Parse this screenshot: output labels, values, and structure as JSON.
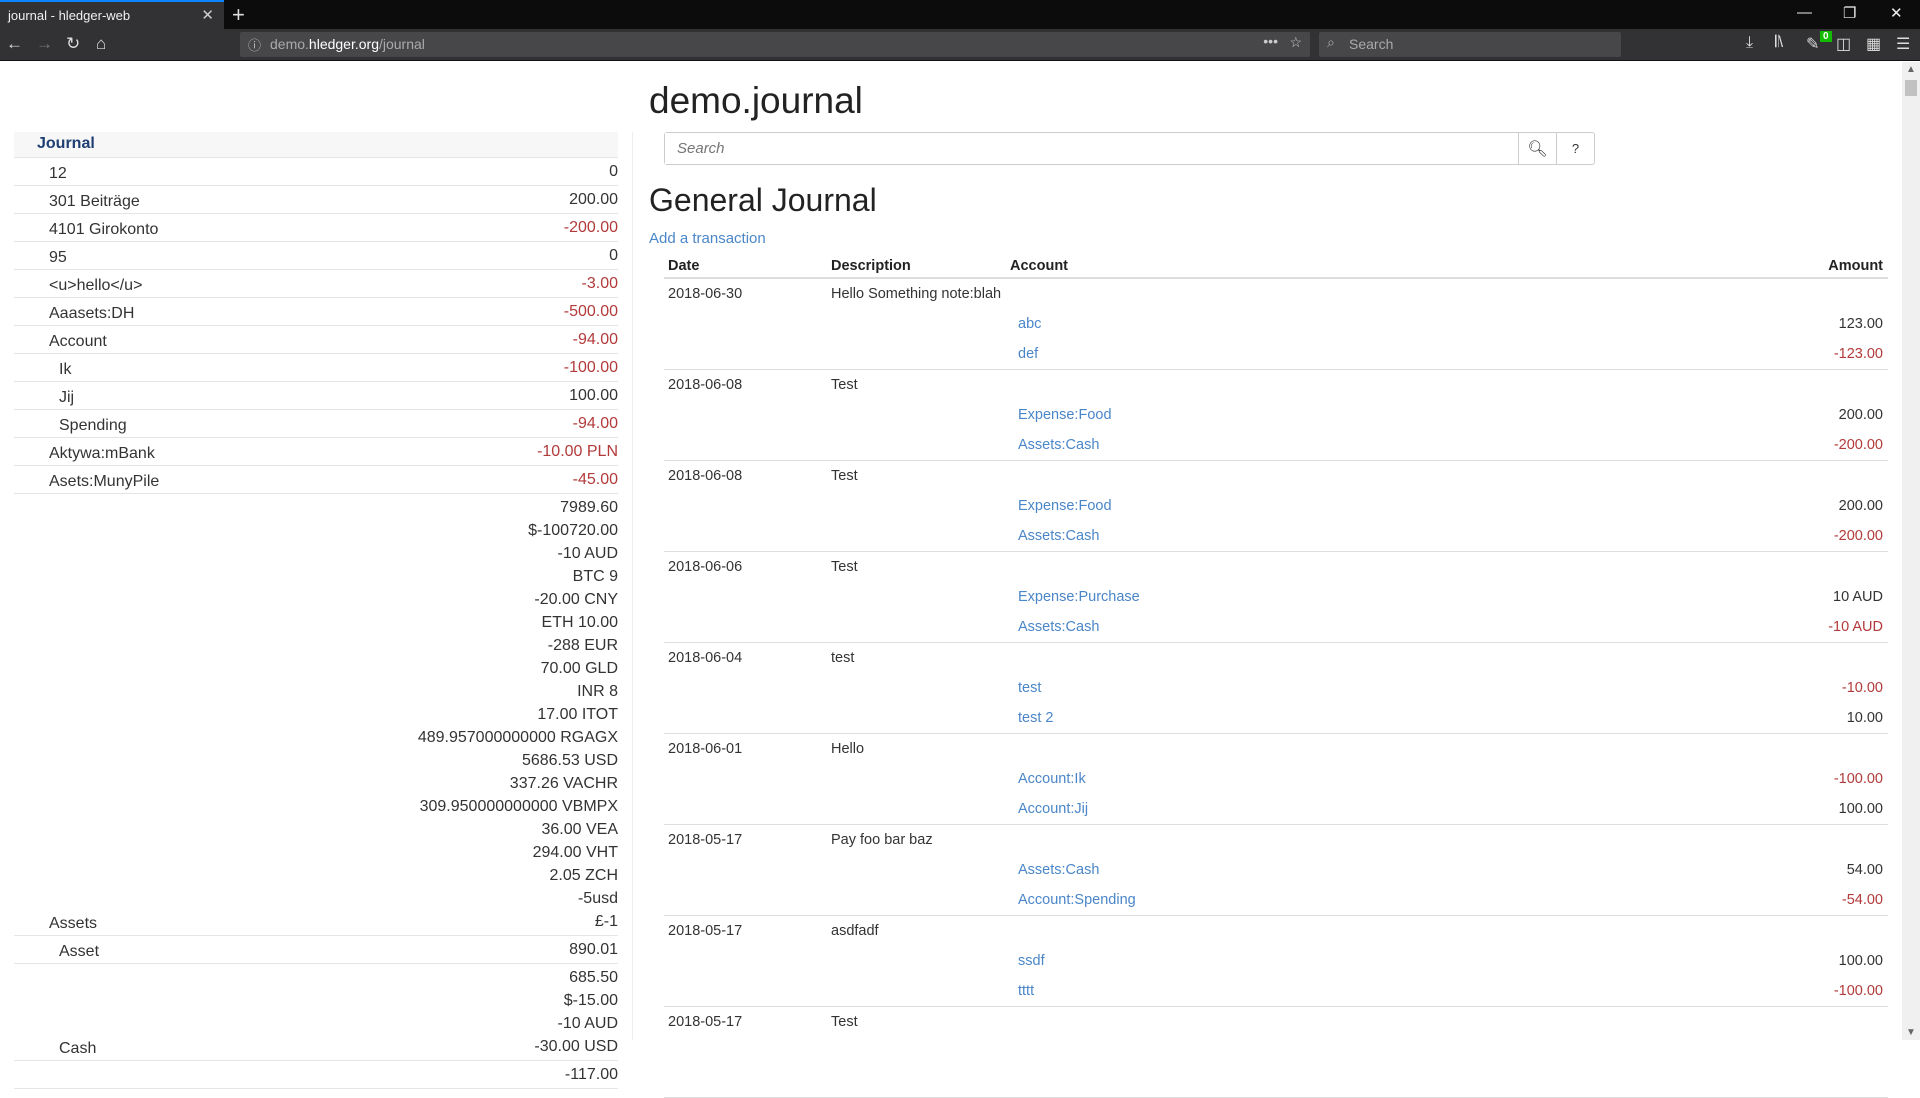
{
  "browser": {
    "tab_title": "journal - hledger-web",
    "url_prefix": "demo.",
    "url_domain": "hledger.org",
    "url_path": "/journal",
    "search_placeholder": "Search",
    "badge": "0"
  },
  "sidebar": {
    "heading": "Journal",
    "rows": [
      {
        "name": "12",
        "level": 1,
        "amounts": [
          {
            "v": "0",
            "neg": false
          }
        ]
      },
      {
        "name": "301 Beiträge",
        "level": 1,
        "amounts": [
          {
            "v": "200.00",
            "neg": false
          }
        ]
      },
      {
        "name": "4101 Girokonto",
        "level": 1,
        "amounts": [
          {
            "v": "-200.00",
            "neg": true
          }
        ]
      },
      {
        "name": "95",
        "level": 1,
        "amounts": [
          {
            "v": "0",
            "neg": false
          }
        ]
      },
      {
        "name": "<u>hello</u>",
        "level": 1,
        "amounts": [
          {
            "v": "-3.00",
            "neg": true
          }
        ]
      },
      {
        "name": "Aaasets:DH",
        "level": 1,
        "amounts": [
          {
            "v": "-500.00",
            "neg": true
          }
        ]
      },
      {
        "name": "Account",
        "level": 1,
        "amounts": [
          {
            "v": "-94.00",
            "neg": true
          }
        ]
      },
      {
        "name": "Ik",
        "level": 2,
        "amounts": [
          {
            "v": "-100.00",
            "neg": true
          }
        ]
      },
      {
        "name": "Jij",
        "level": 2,
        "amounts": [
          {
            "v": "100.00",
            "neg": false
          }
        ]
      },
      {
        "name": "Spending",
        "level": 2,
        "amounts": [
          {
            "v": "-94.00",
            "neg": true
          }
        ]
      },
      {
        "name": "Aktywa:mBank",
        "level": 1,
        "amounts": [
          {
            "v": "-10.00 PLN",
            "neg": true
          }
        ]
      },
      {
        "name": "Asets:MunyPile",
        "level": 1,
        "amounts": [
          {
            "v": "-45.00",
            "neg": true
          }
        ]
      },
      {
        "name": "Assets",
        "level": 1,
        "amounts": [
          {
            "v": "7989.60",
            "neg": false
          },
          {
            "v": "$-100720.00",
            "neg": false
          },
          {
            "v": "-10 AUD",
            "neg": false
          },
          {
            "v": "BTC 9",
            "neg": false
          },
          {
            "v": "-20.00 CNY",
            "neg": false
          },
          {
            "v": "ETH 10.00",
            "neg": false
          },
          {
            "v": "-288 EUR",
            "neg": false
          },
          {
            "v": "70.00 GLD",
            "neg": false
          },
          {
            "v": "INR 8",
            "neg": false
          },
          {
            "v": "17.00 ITOT",
            "neg": false
          },
          {
            "v": "489.957000000000 RGAGX",
            "neg": false
          },
          {
            "v": "5686.53 USD",
            "neg": false
          },
          {
            "v": "337.26 VACHR",
            "neg": false
          },
          {
            "v": "309.950000000000 VBMPX",
            "neg": false
          },
          {
            "v": "36.00 VEA",
            "neg": false
          },
          {
            "v": "294.00 VHT",
            "neg": false
          },
          {
            "v": "2.05 ZCH",
            "neg": false
          },
          {
            "v": "-5usd",
            "neg": false
          },
          {
            "v": "£-1",
            "neg": false
          }
        ]
      },
      {
        "name": "Asset",
        "level": 2,
        "amounts": [
          {
            "v": "890.01",
            "neg": false
          }
        ]
      },
      {
        "name": "Cash",
        "level": 2,
        "amounts": [
          {
            "v": "685.50",
            "neg": false
          },
          {
            "v": "$-15.00",
            "neg": false
          },
          {
            "v": "-10 AUD",
            "neg": false
          },
          {
            "v": "-30.00 USD",
            "neg": false
          }
        ]
      },
      {
        "name": "",
        "level": 2,
        "amounts": [
          {
            "v": "-117.00",
            "neg": false
          }
        ]
      }
    ]
  },
  "main": {
    "title": "demo.journal",
    "search_placeholder": "Search",
    "help_label": "?",
    "heading": "General Journal",
    "add_link": "Add a transaction",
    "columns": {
      "date": "Date",
      "description": "Description",
      "account": "Account",
      "amount": "Amount"
    },
    "transactions": [
      {
        "date": "2018-06-30",
        "desc": "Hello Something note:blah",
        "postings": [
          {
            "account": "abc",
            "amount": "123.00",
            "neg": false
          },
          {
            "account": "def",
            "amount": "-123.00",
            "neg": true
          }
        ]
      },
      {
        "date": "2018-06-08",
        "desc": "Test",
        "postings": [
          {
            "account": "Expense:Food",
            "amount": "200.00",
            "neg": false
          },
          {
            "account": "Assets:Cash",
            "amount": "-200.00",
            "neg": true
          }
        ]
      },
      {
        "date": "2018-06-08",
        "desc": "Test",
        "postings": [
          {
            "account": "Expense:Food",
            "amount": "200.00",
            "neg": false
          },
          {
            "account": "Assets:Cash",
            "amount": "-200.00",
            "neg": true
          }
        ]
      },
      {
        "date": "2018-06-06",
        "desc": "Test",
        "postings": [
          {
            "account": "Expense:Purchase",
            "amount": "10 AUD",
            "neg": false
          },
          {
            "account": "Assets:Cash",
            "amount": "-10 AUD",
            "neg": true
          }
        ]
      },
      {
        "date": "2018-06-04",
        "desc": "test",
        "postings": [
          {
            "account": "test",
            "amount": "-10.00",
            "neg": true
          },
          {
            "account": "test 2",
            "amount": "10.00",
            "neg": false
          }
        ]
      },
      {
        "date": "2018-06-01",
        "desc": "Hello",
        "postings": [
          {
            "account": "Account:Ik",
            "amount": "-100.00",
            "neg": true
          },
          {
            "account": "Account:Jij",
            "amount": "100.00",
            "neg": false
          }
        ]
      },
      {
        "date": "2018-05-17",
        "desc": "Pay foo bar baz",
        "postings": [
          {
            "account": "Assets:Cash",
            "amount": "54.00",
            "neg": false
          },
          {
            "account": "Account:Spending",
            "amount": "-54.00",
            "neg": true
          }
        ]
      },
      {
        "date": "2018-05-17",
        "desc": "asdfadf",
        "postings": [
          {
            "account": "ssdf",
            "amount": "100.00",
            "neg": false
          },
          {
            "account": "tttt",
            "amount": "-100.00",
            "neg": true
          }
        ]
      },
      {
        "date": "2018-05-17",
        "desc": "Test",
        "postings": []
      }
    ]
  }
}
